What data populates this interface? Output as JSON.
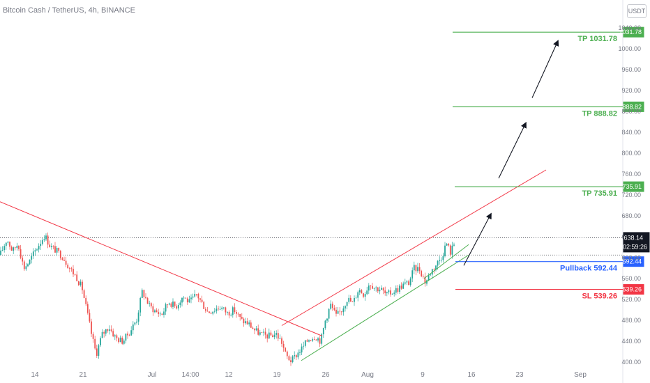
{
  "header": {
    "symbol_title": "Bitcoin Cash / TetherUS, 4h, BINANCE",
    "currency": "USDT"
  },
  "colors": {
    "up": "#26a69a",
    "down": "#ef5350",
    "green_line": "#4caf50",
    "red_line": "#f23645",
    "blue": "#2962ff",
    "text": "#787b86",
    "dark": "#131722"
  },
  "chart_data": {
    "type": "candlestick",
    "y_axis": {
      "min": 400,
      "max": 1040,
      "ticks": [
        "400.00",
        "440.00",
        "480.00",
        "520.00",
        "560.00",
        "600.00",
        "640.00",
        "680.00",
        "720.00",
        "760.00",
        "800.00",
        "840.00",
        "880.00",
        "920.00",
        "960.00",
        "1000.00",
        "1040.00"
      ]
    },
    "x_axis": {
      "ticks": [
        "14",
        "21",
        "Jul",
        "14:00",
        "12",
        "19",
        "26",
        "Aug",
        "9",
        "16",
        "23",
        "Sep"
      ]
    },
    "current_price": "638.14",
    "countdown": "02:59:26",
    "levels": [
      {
        "label": "TP 1031.78",
        "price": 1031.78,
        "badge": "1031.78",
        "kind": "target"
      },
      {
        "label": "TP 888.82",
        "price": 888.82,
        "badge": "888.82",
        "kind": "target"
      },
      {
        "label": "TP 735.91",
        "price": 735.91,
        "badge": "735.91",
        "kind": "target"
      },
      {
        "label": "Pullback 592.44",
        "price": 592.44,
        "badge": "592.44",
        "kind": "pullback"
      },
      {
        "label": "SL 539.26",
        "price": 539.26,
        "badge": "539.26",
        "kind": "stop"
      }
    ],
    "trendlines": [
      {
        "name": "downtrend-resistance",
        "color": "red",
        "from": [
          0,
          707
        ],
        "to": [
          462,
          450
        ]
      },
      {
        "name": "channel-upper",
        "color": "red",
        "from": [
          404,
          470
        ],
        "to": [
          783,
          768
        ]
      },
      {
        "name": "channel-lower",
        "color": "green",
        "from": [
          432,
          403
        ],
        "to": [
          672,
          605
        ]
      }
    ],
    "price_path": [
      [
        0,
        605
      ],
      [
        10,
        636
      ],
      [
        18,
        612
      ],
      [
        26,
        628
      ],
      [
        34,
        580
      ],
      [
        42,
        592
      ],
      [
        50,
        612
      ],
      [
        58,
        630
      ],
      [
        64,
        643
      ],
      [
        72,
        622
      ],
      [
        80,
        614
      ],
      [
        90,
        602
      ],
      [
        100,
        580
      ],
      [
        110,
        562
      ],
      [
        118,
        540
      ],
      [
        126,
        488
      ],
      [
        132,
        448
      ],
      [
        138,
        415
      ],
      [
        146,
        452
      ],
      [
        156,
        468
      ],
      [
        166,
        446
      ],
      [
        176,
        440
      ],
      [
        186,
        458
      ],
      [
        196,
        482
      ],
      [
        204,
        536
      ],
      [
        214,
        508
      ],
      [
        224,
        496
      ],
      [
        232,
        492
      ],
      [
        242,
        516
      ],
      [
        252,
        506
      ],
      [
        262,
        526
      ],
      [
        272,
        514
      ],
      [
        282,
        530
      ],
      [
        290,
        512
      ],
      [
        298,
        496
      ],
      [
        306,
        500
      ],
      [
        316,
        506
      ],
      [
        326,
        494
      ],
      [
        336,
        500
      ],
      [
        346,
        480
      ],
      [
        356,
        474
      ],
      [
        366,
        460
      ],
      [
        376,
        452
      ],
      [
        386,
        450
      ],
      [
        396,
        454
      ],
      [
        404,
        438
      ],
      [
        410,
        412
      ],
      [
        418,
        402
      ],
      [
        426,
        416
      ],
      [
        434,
        428
      ],
      [
        442,
        444
      ],
      [
        452,
        450
      ],
      [
        460,
        440
      ],
      [
        466,
        478
      ],
      [
        474,
        510
      ],
      [
        482,
        488
      ],
      [
        490,
        500
      ],
      [
        498,
        522
      ],
      [
        506,
        512
      ],
      [
        514,
        540
      ],
      [
        522,
        530
      ],
      [
        530,
        552
      ],
      [
        538,
        542
      ],
      [
        546,
        540
      ],
      [
        554,
        528
      ],
      [
        562,
        534
      ],
      [
        570,
        540
      ],
      [
        578,
        548
      ],
      [
        586,
        552
      ],
      [
        594,
        580
      ],
      [
        602,
        578
      ],
      [
        610,
        552
      ],
      [
        618,
        574
      ],
      [
        626,
        588
      ],
      [
        634,
        604
      ],
      [
        640,
        629
      ],
      [
        646,
        610
      ],
      [
        652,
        630
      ]
    ],
    "projection_arrows": [
      [
        [
          665,
          585
        ],
        [
          704,
          684
        ]
      ],
      [
        [
          715,
          752
        ],
        [
          754,
          858
        ]
      ],
      [
        [
          763,
          906
        ],
        [
          800,
          1015
        ]
      ]
    ]
  }
}
